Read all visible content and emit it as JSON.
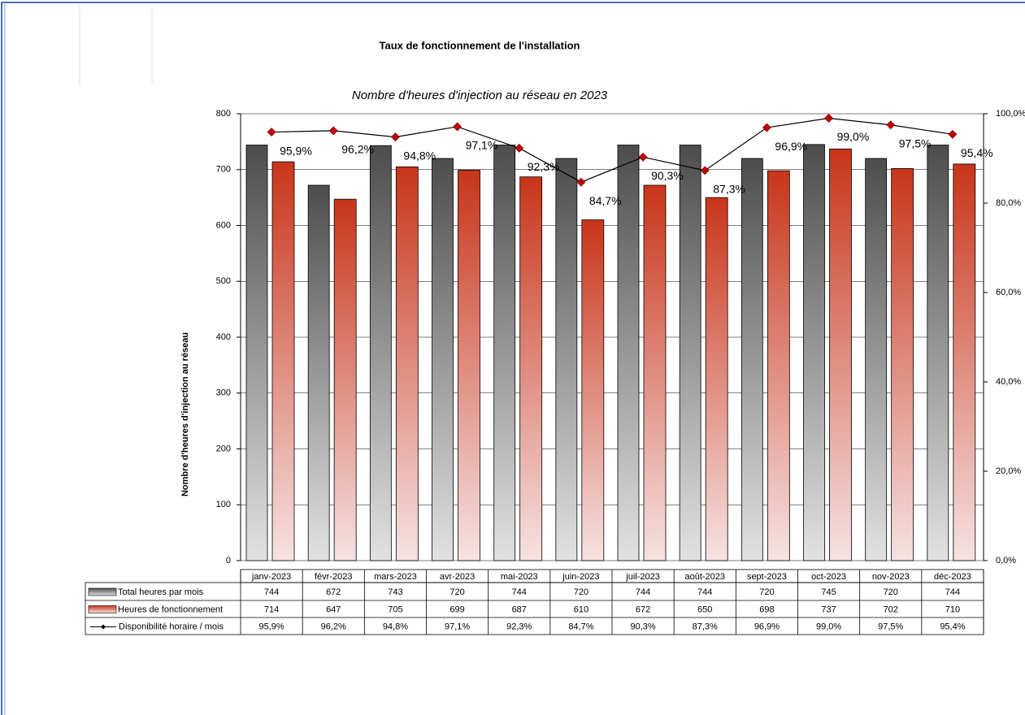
{
  "chart_data": {
    "type": "bar",
    "title": "Taux de fonctionnement de l'installation",
    "subtitle": "Nombre d'heures d'injection au réseau en 2023",
    "y_label": "Nombre d'heures d'injection au réseau",
    "categories": [
      "janv-2023",
      "févr-2023",
      "mars-2023",
      "avr-2023",
      "mai-2023",
      "juin-2023",
      "juil-2023",
      "août-2023",
      "sept-2023",
      "oct-2023",
      "nov-2023",
      "déc-2023"
    ],
    "series": [
      {
        "name": "Total heures par mois",
        "color": "#4d4d4d",
        "values": [
          744,
          672,
          743,
          720,
          744,
          720,
          744,
          744,
          720,
          745,
          720,
          744
        ]
      },
      {
        "name": "Heures de fonctionnement",
        "color": "#c8351a",
        "values": [
          714,
          647,
          705,
          699,
          687,
          610,
          672,
          650,
          698,
          737,
          702,
          710
        ]
      },
      {
        "name": "Disponibilité horaire / mois",
        "color": "#c00000",
        "type": "line",
        "axis": "y2",
        "values": [
          95.9,
          96.2,
          94.8,
          97.1,
          92.3,
          84.7,
          90.3,
          87.3,
          96.9,
          99.0,
          97.5,
          95.4
        ],
        "value_labels": [
          "95,9%",
          "96,2%",
          "94,8%",
          "97,1%",
          "92,3%",
          "84,7%",
          "90,3%",
          "87,3%",
          "96,9%",
          "99,0%",
          "97,5%",
          "95,4%"
        ]
      }
    ],
    "ylim": [
      0,
      800
    ],
    "yticks": [
      0,
      100,
      200,
      300,
      400,
      500,
      600,
      700,
      800
    ],
    "y2lim": [
      0,
      100
    ],
    "y2ticks": [
      {
        "value": 0,
        "label": "0,0%"
      },
      {
        "value": 20,
        "label": "20,0%"
      },
      {
        "value": 40,
        "label": "40,0%"
      },
      {
        "value": 60,
        "label": "60,0%"
      },
      {
        "value": 80,
        "label": "80,0%"
      },
      {
        "value": 100,
        "label": "100,0%"
      }
    ],
    "grid": true
  }
}
